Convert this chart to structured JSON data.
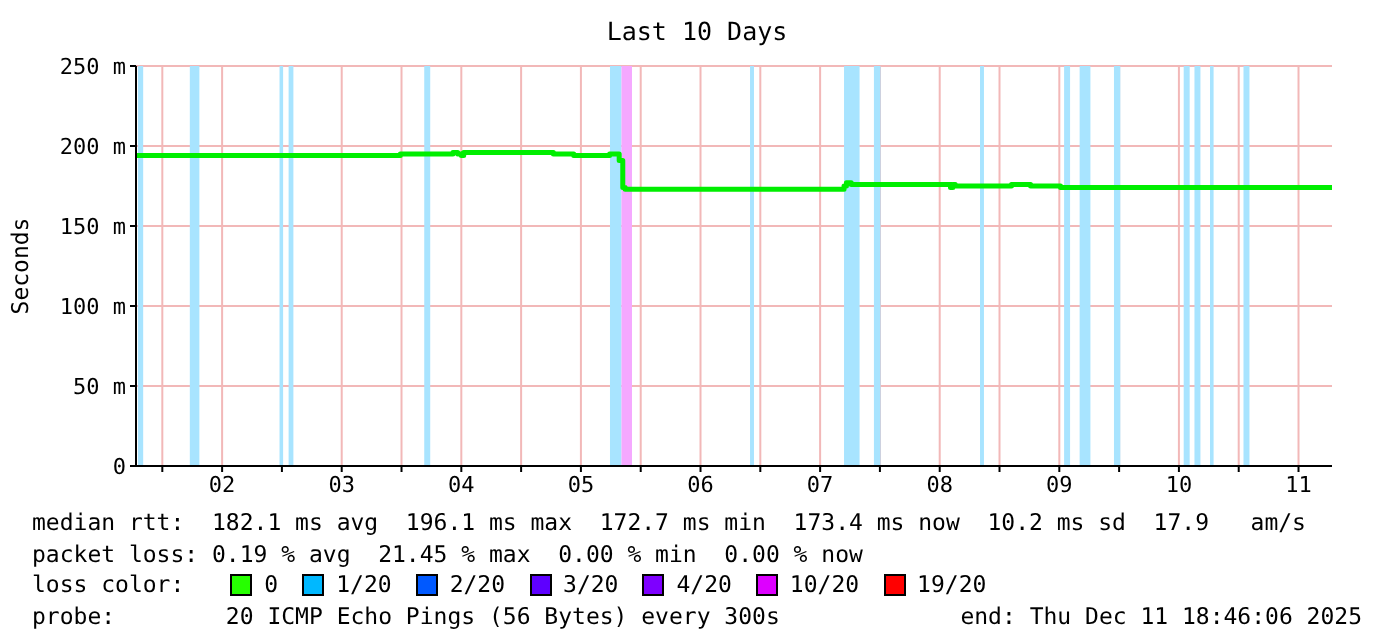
{
  "chart_data": {
    "type": "step",
    "title": "Last 10 Days",
    "ylabel": "Seconds",
    "x": [
      1.78,
      3.99,
      4.43,
      4.47,
      4.5,
      4.52,
      5.27,
      5.44,
      5.74,
      5.82,
      5.85,
      5.87,
      7.7,
      7.72,
      7.76,
      7.8,
      8.59,
      8.61,
      8.63,
      9.1,
      9.26,
      9.51,
      10.37,
      11.54,
      11.78
    ],
    "series": [
      {
        "color": "#00ee00",
        "values": [
          194,
          195,
          196,
          195,
          194,
          196,
          195,
          194,
          195,
          191,
          174,
          173,
          175,
          177,
          176,
          176,
          174,
          176,
          175,
          176,
          175,
          174,
          174,
          174,
          174
        ]
      }
    ],
    "xlim": [
      1.78,
      11.78
    ],
    "xticks": [
      {
        "value": 2,
        "label": null
      },
      {
        "value": 2.5,
        "label": "02"
      },
      {
        "value": 3,
        "label": null
      },
      {
        "value": 3.5,
        "label": "03"
      },
      {
        "value": 4,
        "label": null
      },
      {
        "value": 4.5,
        "label": "04"
      },
      {
        "value": 5,
        "label": null
      },
      {
        "value": 5.5,
        "label": "05"
      },
      {
        "value": 6,
        "label": null
      },
      {
        "value": 6.5,
        "label": "06"
      },
      {
        "value": 7,
        "label": null
      },
      {
        "value": 7.5,
        "label": "07"
      },
      {
        "value": 8,
        "label": null
      },
      {
        "value": 8.5,
        "label": "08"
      },
      {
        "value": 9,
        "label": null
      },
      {
        "value": 9.5,
        "label": "09"
      },
      {
        "value": 10,
        "label": null
      },
      {
        "value": 10.5,
        "label": "10"
      },
      {
        "value": 11,
        "label": null
      },
      {
        "value": 11.5,
        "label": "11"
      }
    ],
    "ylim": [
      0,
      250
    ],
    "yticks": [
      0,
      {
        "value": 50,
        "label": "50 m"
      },
      {
        "value": 100,
        "label": "100 m"
      },
      {
        "value": 150,
        "label": "150 m"
      },
      {
        "value": 200,
        "label": "200 m"
      },
      {
        "value": 250,
        "label": "250 m"
      }
    ],
    "grid": true,
    "legend": false,
    "marker": "none",
    "line_style": "solid",
    "bands": [
      {
        "axis": "x",
        "from": 1.797,
        "to": 1.84,
        "color": "#a8e4ff"
      },
      {
        "axis": "x",
        "from": 2.23,
        "to": 2.31,
        "color": "#a8e4ff"
      },
      {
        "axis": "x",
        "from": 2.98,
        "to": 3.01,
        "color": "#a8e4ff"
      },
      {
        "axis": "x",
        "from": 3.056,
        "to": 3.096,
        "color": "#a8e4ff"
      },
      {
        "axis": "x",
        "from": 4.19,
        "to": 4.24,
        "color": "#a8e4ff"
      },
      {
        "axis": "x",
        "from": 5.743,
        "to": 5.839,
        "color": "#a8e4ff"
      },
      {
        "axis": "x",
        "from": 5.839,
        "to": 5.927,
        "color": "#f5a8ff"
      },
      {
        "axis": "x",
        "from": 6.914,
        "to": 6.947,
        "color": "#a8e4ff"
      },
      {
        "axis": "x",
        "from": 7.7,
        "to": 7.83,
        "color": "#a8e4ff"
      },
      {
        "axis": "x",
        "from": 7.95,
        "to": 8.005,
        "color": "#a8e4ff"
      },
      {
        "axis": "x",
        "from": 8.837,
        "to": 8.87,
        "color": "#a8e4ff"
      },
      {
        "axis": "x",
        "from": 9.54,
        "to": 9.59,
        "color": "#a8e4ff"
      },
      {
        "axis": "x",
        "from": 9.67,
        "to": 9.76,
        "color": "#a8e4ff"
      },
      {
        "axis": "x",
        "from": 9.957,
        "to": 10.01,
        "color": "#a8e4ff"
      },
      {
        "axis": "x",
        "from": 10.54,
        "to": 10.59,
        "color": "#a8e4ff"
      },
      {
        "axis": "x",
        "from": 10.63,
        "to": 10.68,
        "color": "#a8e4ff"
      },
      {
        "axis": "x",
        "from": 10.76,
        "to": 10.79,
        "color": "#a8e4ff"
      },
      {
        "axis": "x",
        "from": 11.04,
        "to": 11.09,
        "color": "#a8e4ff"
      }
    ],
    "annotations": [
      "median rtt:  182.1 ms avg  196.1 ms max  172.7 ms min  173.4 ms now  10.2 ms sd  17.9   am/s",
      "packet loss: 0.19 % avg  21.45 % max  0.00 % min  0.00 % now",
      "loss color:",
      "0",
      "1/20",
      "2/20",
      "3/20",
      "4/20",
      "10/20",
      "19/20",
      "probe:        20 ICMP Echo Pings (56 Bytes) every 300s",
      "end: Thu Dec 11 18:46:06 2025"
    ]
  }
}
